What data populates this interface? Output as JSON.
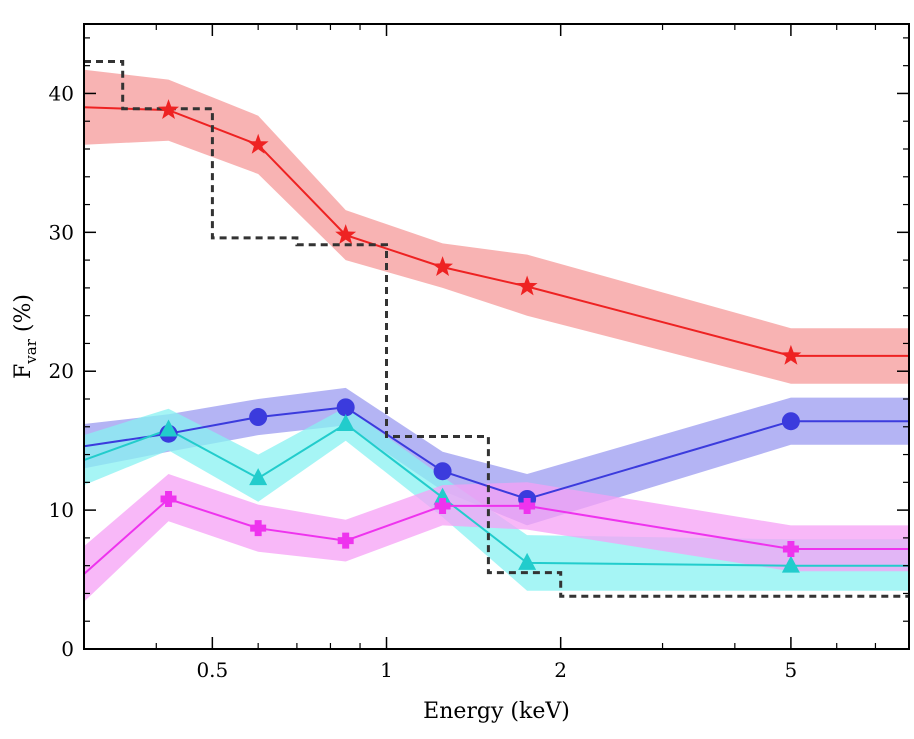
{
  "chart_data": {
    "type": "line",
    "title": "",
    "xlabel": "Energy (keV)",
    "ylabel": {
      "main": "F",
      "sub": "var",
      "rest": " (%)"
    },
    "x_scale": "log",
    "xlim": [
      0.3,
      8.0
    ],
    "ylim": [
      0,
      45
    ],
    "x_ticks": [
      {
        "value": 0.5,
        "label": "0.5"
      },
      {
        "value": 1,
        "label": "1"
      },
      {
        "value": 2,
        "label": "2"
      },
      {
        "value": 5,
        "label": "5"
      }
    ],
    "x_minor_ticks": [
      0.3,
      0.4,
      0.6,
      0.7,
      0.8,
      0.9,
      3,
      4,
      6,
      7,
      8
    ],
    "y_ticks": [
      {
        "value": 0,
        "label": "0"
      },
      {
        "value": 10,
        "label": "10"
      },
      {
        "value": 20,
        "label": "20"
      },
      {
        "value": 30,
        "label": "30"
      },
      {
        "value": 40,
        "label": "40"
      }
    ],
    "y_minor_step": 2,
    "grid": false,
    "series": [
      {
        "color": "#ee2222",
        "band_color": "#f59a9a",
        "marker": "star",
        "x": [
          0.3,
          0.42,
          0.6,
          0.85,
          1.25,
          1.75,
          5.0,
          8.0
        ],
        "y": [
          39.0,
          38.8,
          36.3,
          29.8,
          27.5,
          26.1,
          21.1,
          21.1
        ],
        "lower": [
          36.3,
          36.6,
          34.2,
          28.0,
          26.0,
          24.0,
          19.1,
          19.1
        ],
        "upper": [
          41.7,
          41.0,
          38.4,
          31.6,
          29.2,
          28.4,
          23.1,
          23.1
        ],
        "marker_x": [
          0.42,
          0.6,
          0.85,
          1.25,
          1.75,
          5.0
        ]
      },
      {
        "color": "#3b3bdd",
        "band_color": "#9b9bf0",
        "marker": "circle",
        "x": [
          0.3,
          0.42,
          0.6,
          0.85,
          1.25,
          1.75,
          5.0,
          8.0
        ],
        "y": [
          14.6,
          15.5,
          16.7,
          17.4,
          12.8,
          10.8,
          16.4,
          16.4
        ],
        "lower": [
          13.0,
          14.2,
          15.4,
          16.1,
          11.4,
          8.9,
          14.7,
          14.7
        ],
        "upper": [
          16.2,
          16.9,
          18.0,
          18.8,
          14.2,
          12.6,
          18.1,
          18.1
        ],
        "marker_x": [
          0.42,
          0.6,
          0.85,
          1.25,
          1.75,
          5.0
        ]
      },
      {
        "color": "#22cccc",
        "band_color": "#88f2f2",
        "marker": "triangle",
        "x": [
          0.3,
          0.42,
          0.6,
          0.85,
          1.25,
          1.75,
          5.0,
          8.0
        ],
        "y": [
          13.6,
          15.8,
          12.3,
          16.2,
          10.9,
          6.2,
          6.0,
          6.0
        ],
        "lower": [
          11.8,
          14.3,
          10.6,
          15.0,
          9.5,
          4.2,
          4.2,
          4.2
        ],
        "upper": [
          15.4,
          17.3,
          14.0,
          17.4,
          12.4,
          8.2,
          7.9,
          7.9
        ],
        "marker_x": [
          0.42,
          0.6,
          0.85,
          1.25,
          1.75,
          5.0
        ]
      },
      {
        "color": "#ee33ee",
        "band_color": "#f5a0f5",
        "marker": "cross",
        "x": [
          0.3,
          0.42,
          0.6,
          0.85,
          1.25,
          1.75,
          5.0,
          8.0
        ],
        "y": [
          5.4,
          10.8,
          8.7,
          7.8,
          10.3,
          10.3,
          7.2,
          7.2
        ],
        "lower": [
          3.4,
          9.2,
          7.0,
          6.3,
          8.9,
          8.6,
          5.6,
          5.6
        ],
        "upper": [
          7.4,
          12.6,
          10.4,
          9.3,
          11.8,
          12.0,
          8.9,
          8.9
        ],
        "marker_x": [
          0.42,
          0.6,
          0.85,
          1.25,
          1.75,
          5.0
        ]
      },
      {
        "color": "#333333",
        "style": "dashed-step",
        "edges": [
          0.3,
          0.35,
          0.5,
          0.7,
          1.0,
          1.5,
          2.0,
          8.0
        ],
        "values": [
          42.3,
          38.9,
          29.6,
          29.1,
          15.3,
          5.5,
          3.8
        ]
      }
    ]
  }
}
